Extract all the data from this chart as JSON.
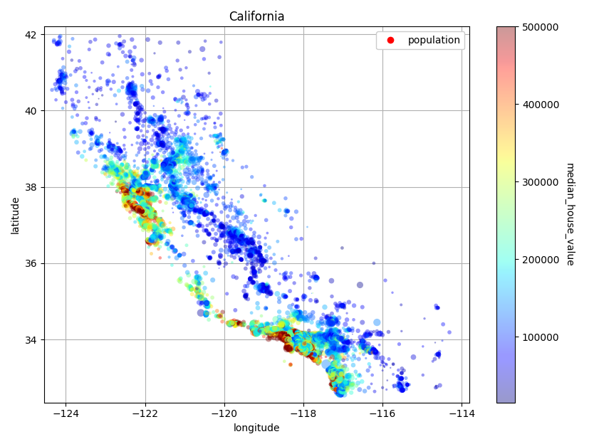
{
  "title": "California",
  "xlabel": "longitude",
  "ylabel": "latitude",
  "colorbar_label": "median_house_value",
  "legend_label": "population",
  "xlim": [
    -124.55,
    -113.8
  ],
  "ylim": [
    32.35,
    42.2
  ],
  "xticks": [
    -124,
    -122,
    -120,
    -118,
    -116,
    -114
  ],
  "yticks": [
    34,
    36,
    38,
    40,
    42
  ],
  "cmap": "jet",
  "vmin": 14999,
  "vmax": 500001,
  "colorbar_ticks": [
    100000,
    200000,
    300000,
    400000,
    500000
  ],
  "background_color": "#ffffff",
  "grid_color": "#b0b0b0",
  "figsize": [
    8.34,
    6.24
  ],
  "dpi": 100,
  "alpha": 0.4,
  "pop_scale": 100,
  "pop_power": 0.5
}
